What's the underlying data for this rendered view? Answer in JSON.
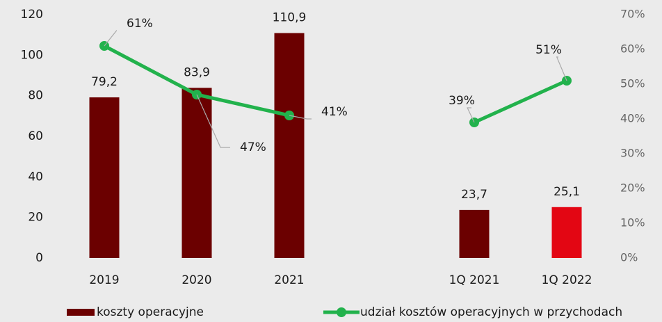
{
  "chart_data": {
    "type": "bar-line",
    "categories": [
      "2019",
      "2020",
      "2021",
      null,
      "1Q 2021",
      "1Q 2022"
    ],
    "series": [
      {
        "name": "koszty operacyjne",
        "type": "bar",
        "color": "#6b0000",
        "colors": [
          "#6b0000",
          "#6b0000",
          "#6b0000",
          null,
          "#6b0000",
          "#e30613"
        ],
        "values": [
          79.2,
          83.9,
          110.9,
          null,
          23.7,
          25.1
        ],
        "value_labels": [
          "79,2",
          "83,9",
          "110,9",
          null,
          "23,7",
          "25,1"
        ]
      },
      {
        "name": "udział kosztów operacyjnych w przychodach",
        "type": "line",
        "axis": "y2",
        "color": "#22b24c",
        "values": [
          61,
          47,
          41,
          null,
          39,
          51
        ],
        "value_labels": [
          "61%",
          "47%",
          "41%",
          null,
          "39%",
          "51%"
        ]
      }
    ],
    "ylim": [
      0,
      120
    ],
    "yticks": [
      0,
      20,
      40,
      60,
      80,
      100,
      120
    ],
    "y2lim": [
      0,
      70
    ],
    "y2ticks": [
      {
        "value": 0,
        "label": "0%"
      },
      {
        "value": 10,
        "label": "10%"
      },
      {
        "value": 20,
        "label": "20%"
      },
      {
        "value": 30,
        "label": "30%"
      },
      {
        "value": 40,
        "label": "40%"
      },
      {
        "value": 50,
        "label": "50%"
      },
      {
        "value": 60,
        "label": "60%"
      },
      {
        "value": 70,
        "label": "70%"
      }
    ],
    "legend": "bottom"
  }
}
